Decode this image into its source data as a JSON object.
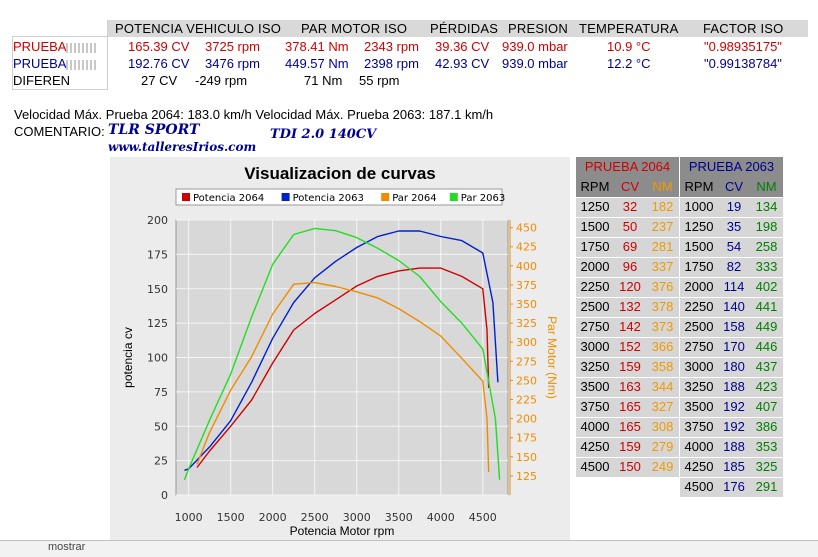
{
  "header": {
    "potencia": "POTENCIA VEHICULO ISO",
    "par": "PAR MOTOR ISO",
    "perdidas": "PÉRDIDAS",
    "presion": "PRESION",
    "temperatura": "TEMPERATURA",
    "factor": "FACTOR ISO"
  },
  "rows": [
    {
      "label": "PRUEBA",
      "cv": "165.39 CV",
      "rpm1": "3725 rpm",
      "nm": "378.41 Nm",
      "rpm2": "2343 rpm",
      "perd": "39.36 CV",
      "pres": "939.0 mbar",
      "temp": "10.9 °C",
      "factor": "\"0.98935175\""
    },
    {
      "label": "PRUEBA",
      "cv": "192.76 CV",
      "rpm1": "3476 rpm",
      "nm": "449.57 Nm",
      "rpm2": "2398 rpm",
      "perd": "42.93 CV",
      "pres": "939.0 mbar",
      "temp": "12.2 °C",
      "factor": "\"0.99138784\""
    },
    {
      "label": "DIFEREN",
      "cv": "27 CV",
      "rpm1": "-249 rpm",
      "nm": "71 Nm",
      "rpm2": "55 rpm"
    }
  ],
  "velocidad": "Velocidad Máx. Prueba 2064: 183.0 km/h Velocidad Máx. Prueba 2063: 187.1 km/h",
  "comentario_label": "COMENTARIO:",
  "comentario_1": "TLR   SPORT",
  "comentario_2": "TDI  2.0  140CV",
  "comentario_3": "www.talleresIrios.com",
  "sheet_tab": "mostrar",
  "colors": {
    "red": "#d00000",
    "blue": "#000090",
    "orange": "#f08c00",
    "green": "#00c000",
    "nm_orange": "#f09a00",
    "nm_green": "#008000"
  },
  "table_2064": {
    "title": "PRUEBA 2064",
    "cols": [
      "RPM",
      "CV",
      "NM"
    ],
    "rows": [
      [
        "1250",
        "32",
        "182"
      ],
      [
        "1500",
        "50",
        "237"
      ],
      [
        "1750",
        "69",
        "281"
      ],
      [
        "2000",
        "96",
        "337"
      ],
      [
        "2250",
        "120",
        "376"
      ],
      [
        "2500",
        "132",
        "378"
      ],
      [
        "2750",
        "142",
        "373"
      ],
      [
        "3000",
        "152",
        "366"
      ],
      [
        "3250",
        "159",
        "358"
      ],
      [
        "3500",
        "163",
        "344"
      ],
      [
        "3750",
        "165",
        "327"
      ],
      [
        "4000",
        "165",
        "308"
      ],
      [
        "4250",
        "159",
        "279"
      ],
      [
        "4500",
        "150",
        "249"
      ]
    ]
  },
  "table_2063": {
    "title": "PRUEBA 2063",
    "cols": [
      "RPM",
      "CV",
      "NM"
    ],
    "rows": [
      [
        "1000",
        "19",
        "134"
      ],
      [
        "1250",
        "35",
        "198"
      ],
      [
        "1500",
        "54",
        "258"
      ],
      [
        "1750",
        "82",
        "333"
      ],
      [
        "2000",
        "114",
        "402"
      ],
      [
        "2250",
        "140",
        "441"
      ],
      [
        "2500",
        "158",
        "449"
      ],
      [
        "2750",
        "170",
        "446"
      ],
      [
        "3000",
        "180",
        "437"
      ],
      [
        "3250",
        "188",
        "423"
      ],
      [
        "3500",
        "192",
        "407"
      ],
      [
        "3750",
        "192",
        "386"
      ],
      [
        "4000",
        "188",
        "353"
      ],
      [
        "4250",
        "185",
        "325"
      ],
      [
        "4500",
        "176",
        "291"
      ]
    ]
  },
  "chart_data": {
    "type": "line",
    "title": "Visualizacion de curvas",
    "xlabel": "Potencia Motor rpm",
    "ylabel": "potencia cv",
    "y2label": "Par Motor (Nm)",
    "xlim": [
      850,
      4800
    ],
    "ylim": [
      0,
      200
    ],
    "y2lim": [
      100,
      460
    ],
    "xticks": [
      1000,
      1500,
      2000,
      2500,
      3000,
      3500,
      4000,
      4500
    ],
    "yticks": [
      0,
      25,
      50,
      75,
      100,
      125,
      150,
      175,
      200
    ],
    "y2ticks": [
      125,
      150,
      175,
      200,
      225,
      250,
      275,
      300,
      325,
      350,
      375,
      400,
      425,
      450
    ],
    "legend_position": "top",
    "series": [
      {
        "name": "Potencia 2064",
        "axis": "left",
        "color": "#d00000",
        "x": [
          1100,
          1250,
          1500,
          1750,
          2000,
          2250,
          2500,
          2750,
          3000,
          3250,
          3500,
          3750,
          4000,
          4250,
          4500,
          4550,
          4570
        ],
        "y": [
          20,
          32,
          50,
          69,
          96,
          120,
          132,
          142,
          152,
          159,
          163,
          165,
          165,
          159,
          150,
          120,
          78
        ]
      },
      {
        "name": "Potencia 2063",
        "axis": "left",
        "color": "#0020d0",
        "x": [
          950,
          1000,
          1250,
          1500,
          1750,
          2000,
          2250,
          2500,
          2750,
          3000,
          3250,
          3500,
          3750,
          4000,
          4250,
          4500,
          4620,
          4680
        ],
        "y": [
          18,
          19,
          35,
          54,
          82,
          114,
          140,
          158,
          170,
          180,
          188,
          192,
          192,
          188,
          185,
          176,
          140,
          82
        ]
      },
      {
        "name": "Par 2064",
        "axis": "right",
        "color": "#f08c00",
        "x": [
          1100,
          1250,
          1500,
          1750,
          2000,
          2250,
          2500,
          2750,
          3000,
          3250,
          3500,
          3750,
          4000,
          4250,
          4500,
          4550,
          4570
        ],
        "y": [
          140,
          182,
          237,
          281,
          337,
          376,
          378,
          373,
          366,
          358,
          344,
          327,
          308,
          279,
          249,
          200,
          130
        ]
      },
      {
        "name": "Par 2063",
        "axis": "right",
        "color": "#22dd22",
        "x": [
          950,
          1000,
          1250,
          1500,
          1750,
          2000,
          2250,
          2500,
          2750,
          3000,
          3250,
          3500,
          3750,
          4000,
          4250,
          4500,
          4650,
          4700
        ],
        "y": [
          120,
          134,
          198,
          258,
          333,
          402,
          441,
          449,
          446,
          437,
          423,
          407,
          386,
          353,
          325,
          291,
          200,
          120
        ]
      }
    ]
  }
}
